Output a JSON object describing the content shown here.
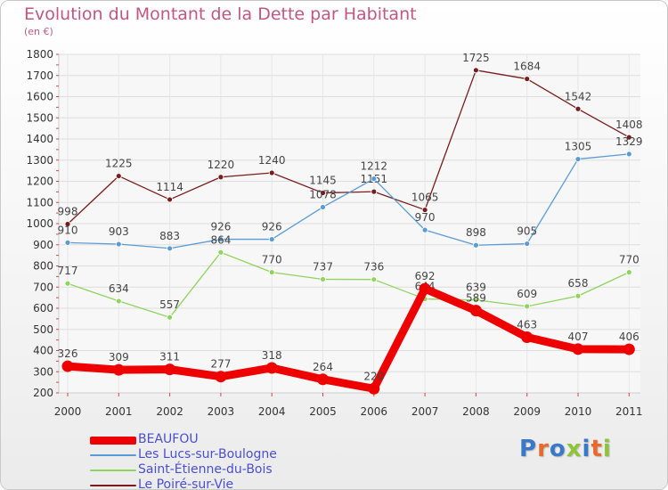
{
  "title": "Evolution du Montant de la Dette par Habitant",
  "subtitle": "(en €)",
  "logo": "Proxiti",
  "chart_data": {
    "type": "line",
    "categories": [
      "2000",
      "2001",
      "2002",
      "2003",
      "2004",
      "2005",
      "2006",
      "2007",
      "2008",
      "2009",
      "2010",
      "2011"
    ],
    "ylim": [
      200,
      1800
    ],
    "yticks": [
      200,
      300,
      400,
      500,
      600,
      700,
      800,
      900,
      1000,
      1100,
      1200,
      1300,
      1400,
      1500,
      1600,
      1700,
      1800
    ],
    "grid": true,
    "legend_position": "bottom-left",
    "series": [
      {
        "name": "Le Poiré-sur-Vie",
        "color": "#7a1c1c",
        "values": [
          998,
          1225,
          1114,
          1220,
          1240,
          1145,
          1151,
          1065,
          1725,
          1684,
          1542,
          1408
        ]
      },
      {
        "name": "Les Lucs-sur-Boulogne",
        "color": "#5a9bd5",
        "values": [
          910,
          903,
          883,
          926,
          926,
          1078,
          1212,
          970,
          898,
          905,
          1305,
          1329
        ]
      },
      {
        "name": "Saint-Étienne-du-Bois",
        "color": "#8fd45e",
        "values": [
          717,
          634,
          557,
          864,
          770,
          737,
          736,
          644,
          639,
          609,
          658,
          770
        ]
      },
      {
        "name": "BEAUFOU",
        "color": "#ee0000",
        "values": [
          326,
          309,
          311,
          277,
          318,
          264,
          220,
          692,
          589,
          463,
          407,
          406
        ]
      }
    ],
    "legend_order": [
      "BEAUFOU",
      "Les Lucs-sur-Boulogne",
      "Saint-Étienne-du-Bois",
      "Le Poiré-sur-Vie"
    ]
  }
}
